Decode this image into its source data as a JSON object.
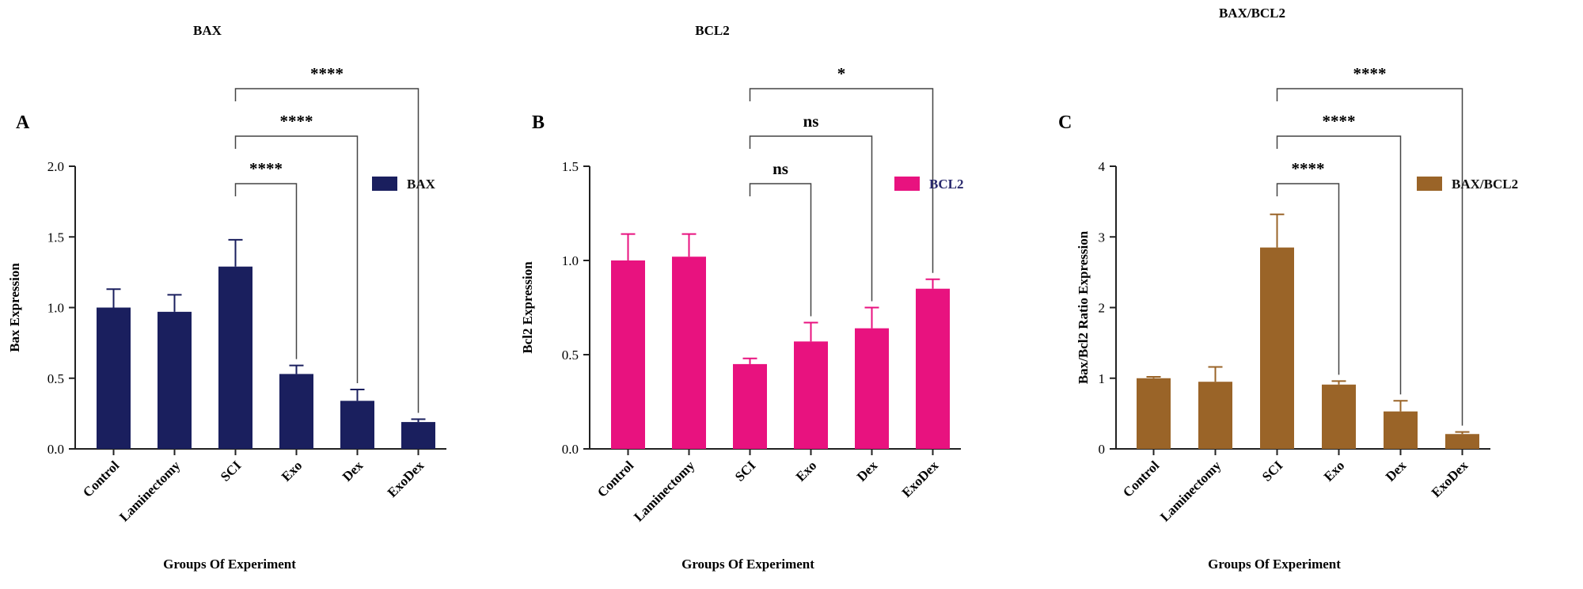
{
  "figure": {
    "x_label": "Groups Of Experiment"
  },
  "chart_data": [
    {
      "panel": "A",
      "type": "bar",
      "title": "BAX",
      "ylabel": "Bax Expression",
      "xlabel": "Groups Of Experiment",
      "categories": [
        "Control",
        "Laminectomy",
        "SCI",
        "Exo",
        "Dex",
        "ExoDex"
      ],
      "values": [
        1.0,
        0.97,
        1.29,
        0.53,
        0.34,
        0.19
      ],
      "errors": [
        0.13,
        0.12,
        0.19,
        0.06,
        0.08,
        0.02
      ],
      "ylim": [
        0,
        2.0
      ],
      "yticks": [
        0.0,
        0.5,
        1.0,
        1.5,
        2.0
      ],
      "ytick_labels": [
        "0.0",
        "0.5",
        "1.0",
        "1.5",
        "2.0"
      ],
      "color": "#1a1f5e",
      "legend": "BAX",
      "significance": [
        {
          "from": "SCI",
          "to": "Exo",
          "label": "****"
        },
        {
          "from": "SCI",
          "to": "Dex",
          "label": "****"
        },
        {
          "from": "SCI",
          "to": "ExoDex",
          "label": "****"
        }
      ]
    },
    {
      "panel": "B",
      "type": "bar",
      "title": "BCL2",
      "ylabel": "Bcl2  Expression",
      "xlabel": "Groups Of Experiment",
      "categories": [
        "Control",
        "Laminectomy",
        "SCI",
        "Exo",
        "Dex",
        "ExoDex"
      ],
      "values": [
        1.0,
        1.02,
        0.45,
        0.57,
        0.64,
        0.85
      ],
      "errors": [
        0.14,
        0.12,
        0.03,
        0.1,
        0.11,
        0.05
      ],
      "ylim": [
        0,
        1.5
      ],
      "yticks": [
        0.0,
        0.5,
        1.0,
        1.5
      ],
      "ytick_labels": [
        "0.0",
        "0.5",
        "1.0",
        "1.5"
      ],
      "color": "#e8127f",
      "legend": "BCL2",
      "significance": [
        {
          "from": "SCI",
          "to": "Exo",
          "label": "ns"
        },
        {
          "from": "SCI",
          "to": "Dex",
          "label": "ns"
        },
        {
          "from": "SCI",
          "to": "ExoDex",
          "label": "*"
        }
      ]
    },
    {
      "panel": "C",
      "type": "bar",
      "title": "BAX/BCL2",
      "ylabel": "Bax/Bcl2 Ratio Expression",
      "xlabel": "Groups Of Experiment",
      "categories": [
        "Control",
        "Laminectomy",
        "SCI",
        "Exo",
        "Dex",
        "ExoDex"
      ],
      "values": [
        1.0,
        0.95,
        2.85,
        0.91,
        0.53,
        0.21
      ],
      "errors": [
        0.02,
        0.21,
        0.47,
        0.05,
        0.15,
        0.03
      ],
      "ylim": [
        0,
        4
      ],
      "yticks": [
        0,
        1,
        2,
        3,
        4
      ],
      "ytick_labels": [
        "0",
        "1",
        "2",
        "3",
        "4"
      ],
      "color": "#9a6428",
      "legend": "BAX/BCL2",
      "significance": [
        {
          "from": "SCI",
          "to": "Exo",
          "label": "****"
        },
        {
          "from": "SCI",
          "to": "Dex",
          "label": "****"
        },
        {
          "from": "SCI",
          "to": "ExoDex",
          "label": "****"
        }
      ]
    }
  ]
}
